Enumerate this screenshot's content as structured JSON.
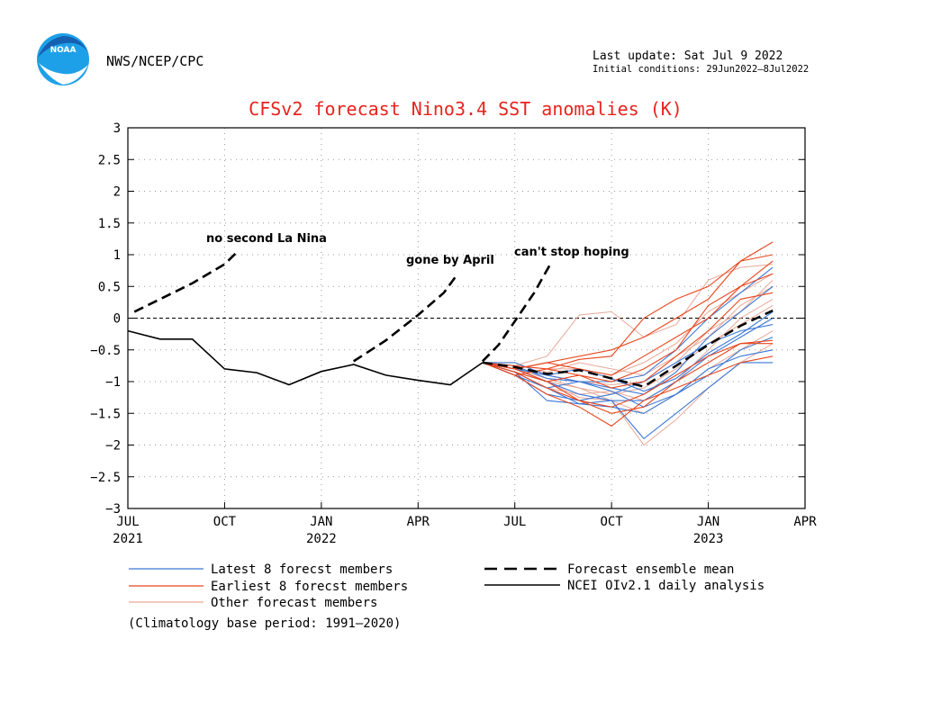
{
  "header": {
    "agency": "NWS/NCEP/CPC",
    "logo_text": "NOAA",
    "last_update": "Last update: Sat Jul 9 2022",
    "initial_conditions": "Initial conditions: 29Jun2022–8Jul2022"
  },
  "colors": {
    "latest": "#3b78d8",
    "earliest": "#e8471e",
    "other": "#e8a898",
    "mean": "#000000",
    "analysis": "#000000",
    "title": "#e8231e"
  },
  "chart_data": {
    "type": "line",
    "title": "CFSv2 forecast Nino3.4 SST anomalies (K)",
    "x_unit": "months since Jul 2021",
    "xlim": [
      0,
      21
    ],
    "ylim": [
      -3,
      3
    ],
    "yticks": [
      3,
      2.5,
      2,
      1.5,
      1,
      0.5,
      0,
      -0.5,
      -1,
      -1.5,
      -2,
      -2.5,
      -3
    ],
    "ytick_labels": [
      "3",
      "2.5",
      "2",
      "1.5",
      "1",
      "0.5",
      "0",
      "−0.5",
      "−1",
      "−1.5",
      "−2",
      "−2.5",
      "−3"
    ],
    "xticks": [
      {
        "x": 0,
        "label": "JUL",
        "year": "2021"
      },
      {
        "x": 3,
        "label": "OCT",
        "year": ""
      },
      {
        "x": 6,
        "label": "JAN",
        "year": "2022"
      },
      {
        "x": 9,
        "label": "APR",
        "year": ""
      },
      {
        "x": 12,
        "label": "JUL",
        "year": ""
      },
      {
        "x": 15,
        "label": "OCT",
        "year": ""
      },
      {
        "x": 18,
        "label": "JAN",
        "year": "2023"
      },
      {
        "x": 21,
        "label": "APR",
        "year": ""
      }
    ],
    "grid": true,
    "zero_line": true,
    "analysis": {
      "name": "NCEI OIv2.1 daily analysis",
      "x": [
        0,
        1,
        2,
        3,
        4,
        5,
        6,
        7,
        8,
        9,
        10,
        11
      ],
      "y": [
        -0.2,
        -0.33,
        -0.33,
        -0.8,
        -0.86,
        -1.05,
        -0.84,
        -0.73,
        -0.9,
        -0.98,
        -1.05,
        -0.7
      ]
    },
    "ensemble_mean": {
      "name": "Forecast ensemble mean",
      "x": [
        11,
        12,
        13,
        14,
        15,
        16,
        17,
        18,
        19,
        20
      ],
      "y": [
        -0.7,
        -0.77,
        -0.88,
        -0.82,
        -0.95,
        -1.08,
        -0.75,
        -0.42,
        -0.12,
        0.12
      ]
    },
    "hand_lines": [
      {
        "label": "no second La Nina",
        "x": [
          0.2,
          1.0,
          2.0,
          3.0,
          3.4
        ],
        "y": [
          0.1,
          0.3,
          0.55,
          0.85,
          1.05
        ]
      },
      {
        "label": "gone by April",
        "x": [
          7.0,
          8.0,
          9.0,
          9.8,
          10.2
        ],
        "y": [
          -0.68,
          -0.35,
          0.05,
          0.4,
          0.68
        ]
      },
      {
        "label": "can't stop hoping",
        "x": [
          11.0,
          11.5,
          12.0,
          12.6,
          13.1
        ],
        "y": [
          -0.68,
          -0.42,
          -0.05,
          0.4,
          0.85
        ]
      }
    ],
    "members_latest": {
      "name": "Latest 8 forecst members",
      "x": [
        11,
        12,
        13,
        14,
        15,
        16,
        17,
        18,
        19,
        20
      ],
      "series": [
        [
          -0.7,
          -0.85,
          -1.3,
          -1.35,
          -1.3,
          -1.9,
          -1.5,
          -1.1,
          -0.7,
          -0.7
        ],
        [
          -0.7,
          -0.9,
          -1.1,
          -1.35,
          -1.4,
          -1.5,
          -1.2,
          -0.9,
          -0.5,
          -0.3
        ],
        [
          -0.7,
          -0.8,
          -1.0,
          -1.2,
          -1.3,
          -1.3,
          -1.0,
          -0.6,
          -0.3,
          0.0
        ],
        [
          -0.7,
          -0.75,
          -0.95,
          -1.0,
          -1.1,
          -1.2,
          -0.85,
          -0.3,
          0.1,
          0.5
        ],
        [
          -0.7,
          -0.8,
          -0.9,
          -1.0,
          -1.0,
          -0.9,
          -0.5,
          0.0,
          0.4,
          0.8
        ],
        [
          -0.7,
          -0.9,
          -1.2,
          -1.3,
          -1.2,
          -1.0,
          -0.7,
          -0.4,
          -0.2,
          -0.1
        ],
        [
          -0.7,
          -0.85,
          -1.1,
          -1.0,
          -1.15,
          -1.4,
          -1.2,
          -0.8,
          -0.6,
          -0.5
        ],
        [
          -0.7,
          -0.7,
          -0.9,
          -0.8,
          -0.95,
          -1.15,
          -0.95,
          -0.55,
          -0.25,
          0.1
        ]
      ]
    },
    "members_earliest": {
      "name": "Earliest 8 forecst members",
      "x": [
        11,
        12,
        13,
        14,
        15,
        16,
        17,
        18,
        19,
        20
      ],
      "series": [
        [
          -0.7,
          -0.8,
          -0.7,
          -0.6,
          -0.5,
          -0.3,
          0.0,
          0.3,
          0.9,
          1.2
        ],
        [
          -0.7,
          -0.75,
          -0.8,
          -0.65,
          -0.6,
          0.0,
          0.3,
          0.5,
          0.9,
          1.0
        ],
        [
          -0.7,
          -0.85,
          -1.0,
          -1.3,
          -1.5,
          -1.4,
          -1.0,
          -0.7,
          -0.4,
          -0.35
        ],
        [
          -0.7,
          -0.9,
          -1.2,
          -1.4,
          -1.7,
          -1.3,
          -1.1,
          -0.9,
          -0.7,
          -0.6
        ],
        [
          -0.7,
          -0.8,
          -0.7,
          -0.8,
          -0.9,
          -0.6,
          -0.3,
          0.0,
          0.5,
          0.9
        ],
        [
          -0.7,
          -0.9,
          -0.8,
          -0.9,
          -1.0,
          -0.8,
          -0.5,
          0.2,
          0.5,
          0.7
        ],
        [
          -0.7,
          -0.85,
          -1.1,
          -1.3,
          -1.4,
          -1.2,
          -0.9,
          -0.6,
          -0.4,
          -0.4
        ],
        [
          -0.7,
          -0.8,
          -1.0,
          -0.9,
          -1.1,
          -1.0,
          -0.6,
          -0.2,
          0.3,
          0.4
        ]
      ]
    },
    "members_other": {
      "name": "Other forecast members",
      "x": [
        11,
        12,
        13,
        14,
        15,
        16,
        17,
        18,
        19,
        20
      ],
      "series": [
        [
          -0.7,
          -0.8,
          -0.95,
          -1.1,
          -1.3,
          -2.0,
          -1.6,
          -1.1,
          -0.7,
          -0.4
        ],
        [
          -0.7,
          -0.75,
          -0.6,
          0.05,
          0.1,
          -0.3,
          -0.1,
          0.6,
          0.8,
          0.85
        ],
        [
          -0.7,
          -0.9,
          -1.1,
          -1.2,
          -1.15,
          -1.3,
          -1.0,
          -0.5,
          0.0,
          0.3
        ],
        [
          -0.7,
          -0.8,
          -0.85,
          -0.7,
          -0.8,
          -0.9,
          -0.6,
          -0.3,
          0.2,
          0.5
        ],
        [
          -0.7,
          -0.85,
          -1.0,
          -1.1,
          -1.2,
          -1.1,
          -0.8,
          -0.4,
          -0.1,
          0.2
        ],
        [
          -0.7,
          -0.7,
          -0.9,
          -1.0,
          -1.05,
          -1.0,
          -0.7,
          -0.2,
          0.1,
          0.6
        ],
        [
          -0.7,
          -0.8,
          -1.0,
          -1.25,
          -1.3,
          -1.5,
          -1.2,
          -0.8,
          -0.5,
          -0.2
        ],
        [
          -0.7,
          -0.75,
          -0.8,
          -0.8,
          -0.9,
          -0.7,
          -0.4,
          0.1,
          0.4,
          0.7
        ]
      ]
    },
    "legend": [
      {
        "key": "latest",
        "label": "Latest 8 forecst members"
      },
      {
        "key": "earliest",
        "label": "Earliest 8 forecst members"
      },
      {
        "key": "other",
        "label": "Other forecast members"
      },
      {
        "key": "mean",
        "label": "Forecast ensemble mean"
      },
      {
        "key": "analysis",
        "label": "NCEI OIv2.1 daily analysis"
      }
    ],
    "footnote": "(Climatology base period: 1991–2020)"
  }
}
